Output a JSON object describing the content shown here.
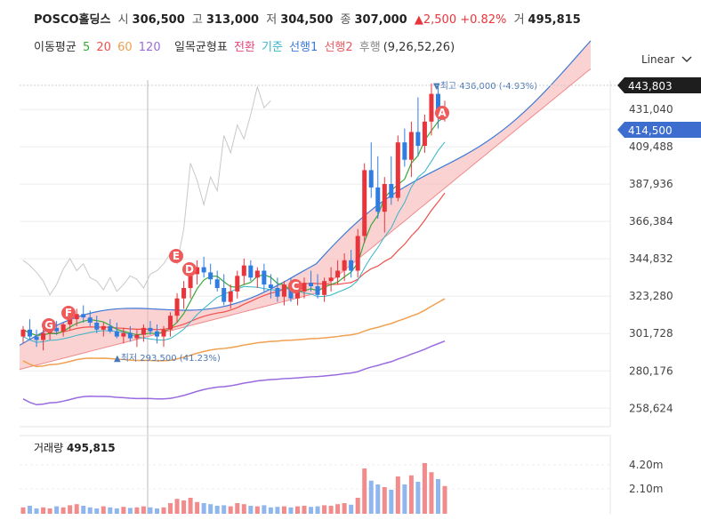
{
  "header": {
    "name": "POSCO홀딩스",
    "open_label": "시",
    "open": "306,500",
    "high_label": "고",
    "high": "313,000",
    "low_label": "저",
    "low": "304,500",
    "close_label": "종",
    "close": "307,000",
    "change": "▲2,500 +0.82%",
    "volume_label": "거",
    "volume": "495,815"
  },
  "indicators": {
    "ma_label": "이동평균",
    "ma_periods": [
      "5",
      "20",
      "60",
      "120"
    ],
    "ma_colors": [
      "#3aa83a",
      "#f0504a",
      "#f0a050",
      "#9a6ae0"
    ],
    "ichimoku_label": "일목균형표",
    "ichimoku_lines": [
      "전환",
      "기준",
      "선행1",
      "선행2",
      "후행"
    ],
    "ichimoku_colors": [
      "#e0457b",
      "#35b5c8",
      "#3d7ad6",
      "#e8585e",
      "#888888"
    ],
    "ichimoku_params": "(9,26,52,26)"
  },
  "scale_select": "Linear",
  "chart_data": {
    "type": "candlestick",
    "y_ticks": [
      "431,040",
      "409,488",
      "387,936",
      "366,384",
      "344,832",
      "323,280",
      "301,728",
      "280,176",
      "258,624"
    ],
    "price_min": 248000,
    "price_max": 448000,
    "current_price_tag": "443,803",
    "last_price_tag": "414,500",
    "high_annotation": "▼최고 436,000 (-4.93%)",
    "low_annotation": "▲최저 293,500 (41.23%)",
    "markers": [
      "A",
      "C",
      "D",
      "E",
      "F",
      "G"
    ],
    "candles": [
      [
        300,
        306,
        296,
        304
      ],
      [
        304,
        310,
        298,
        300
      ],
      [
        300,
        304,
        294,
        298
      ],
      [
        298,
        304,
        292,
        302
      ],
      [
        302,
        308,
        298,
        305
      ],
      [
        305,
        309,
        301,
        303
      ],
      [
        303,
        308,
        300,
        307
      ],
      [
        307,
        312,
        304,
        310
      ],
      [
        310,
        316,
        306,
        313
      ],
      [
        313,
        318,
        308,
        311
      ],
      [
        311,
        315,
        306,
        308
      ],
      [
        308,
        312,
        302,
        304
      ],
      [
        304,
        308,
        300,
        306
      ],
      [
        306,
        310,
        302,
        303
      ],
      [
        303,
        308,
        299,
        300
      ],
      [
        300,
        305,
        296,
        302
      ],
      [
        302,
        306,
        297,
        299
      ],
      [
        299,
        304,
        294,
        301
      ],
      [
        301,
        307,
        297,
        305
      ],
      [
        305,
        309,
        301,
        303
      ],
      [
        303,
        307,
        296,
        300
      ],
      [
        300,
        306,
        294,
        304
      ],
      [
        304,
        314,
        300,
        312
      ],
      [
        312,
        325,
        308,
        322
      ],
      [
        322,
        332,
        316,
        328
      ],
      [
        328,
        340,
        322,
        336
      ],
      [
        336,
        344,
        330,
        340
      ],
      [
        340,
        346,
        334,
        337
      ],
      [
        337,
        342,
        330,
        333
      ],
      [
        333,
        338,
        326,
        328
      ],
      [
        328,
        336,
        318,
        320
      ],
      [
        320,
        330,
        316,
        326
      ],
      [
        326,
        338,
        322,
        335
      ],
      [
        335,
        345,
        330,
        341
      ],
      [
        341,
        344,
        332,
        334
      ],
      [
        334,
        340,
        328,
        338
      ],
      [
        338,
        342,
        326,
        330
      ],
      [
        330,
        336,
        322,
        328
      ],
      [
        328,
        334,
        320,
        323
      ],
      [
        323,
        332,
        318,
        330
      ],
      [
        330,
        334,
        320,
        322
      ],
      [
        322,
        330,
        318,
        326
      ],
      [
        326,
        334,
        322,
        331
      ],
      [
        331,
        338,
        326,
        329
      ],
      [
        329,
        336,
        322,
        324
      ],
      [
        324,
        334,
        320,
        332
      ],
      [
        332,
        340,
        326,
        334
      ],
      [
        334,
        344,
        330,
        338
      ],
      [
        338,
        348,
        332,
        344
      ],
      [
        344,
        350,
        334,
        338
      ],
      [
        338,
        362,
        334,
        358
      ],
      [
        358,
        400,
        354,
        396
      ],
      [
        396,
        412,
        380,
        386
      ],
      [
        386,
        404,
        368,
        372
      ],
      [
        372,
        392,
        360,
        388
      ],
      [
        388,
        404,
        376,
        380
      ],
      [
        380,
        416,
        378,
        412
      ],
      [
        412,
        420,
        398,
        402
      ],
      [
        402,
        424,
        392,
        418
      ],
      [
        418,
        438,
        404,
        410
      ],
      [
        410,
        428,
        406,
        424
      ],
      [
        424,
        446,
        416,
        440
      ],
      [
        440,
        446,
        420,
        428
      ],
      [
        428,
        436,
        424,
        432
      ]
    ],
    "volumes": [
      0.12,
      0.15,
      0.1,
      0.12,
      0.1,
      0.14,
      0.12,
      0.16,
      0.18,
      0.15,
      0.12,
      0.1,
      0.14,
      0.12,
      0.1,
      0.13,
      0.11,
      0.12,
      0.14,
      0.12,
      0.1,
      0.12,
      0.2,
      0.28,
      0.25,
      0.3,
      0.22,
      0.2,
      0.18,
      0.15,
      0.16,
      0.14,
      0.2,
      0.18,
      0.15,
      0.14,
      0.16,
      0.12,
      0.13,
      0.14,
      0.12,
      0.14,
      0.15,
      0.13,
      0.14,
      0.16,
      0.15,
      0.18,
      0.2,
      0.17,
      0.3,
      0.85,
      0.62,
      0.55,
      0.5,
      0.45,
      0.7,
      0.55,
      0.72,
      0.6,
      0.95,
      0.78,
      0.65,
      0.52
    ],
    "volume_ticks": [
      "4.20m",
      "2.10m"
    ],
    "volume_title": "거래량",
    "volume_value": "495,815"
  }
}
